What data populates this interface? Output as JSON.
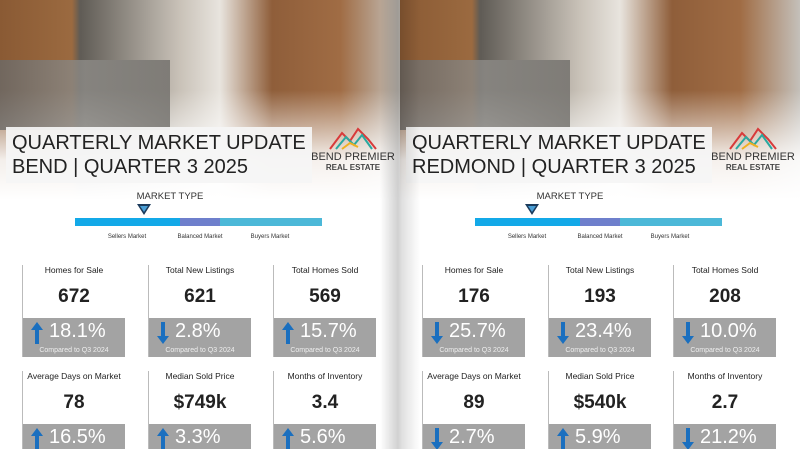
{
  "colors": {
    "sellers": "#13a9e8",
    "balanced": "#6e7fcc",
    "buyers": "#4cb8d8",
    "arrow": "#1a6fbf",
    "stat_box": "#a3a3a3"
  },
  "pages": [
    {
      "title_line1": "QUARTERLY MARKET UPDATE",
      "title_line2": "BEND | QUARTER 3 2025",
      "logo": {
        "name": "BEND PREMIER",
        "sub": "REAL ESTATE"
      },
      "market_type": {
        "label": "MARKET TYPE",
        "segments": [
          "Sellers Market",
          "Balanced Market",
          "Buyers Market"
        ],
        "indicator_position_percent": 28
      },
      "stats": [
        {
          "label": "Homes for Sale",
          "value": "672",
          "direction": "up",
          "change": "18.1%",
          "compare": "Compared to Q3 2024"
        },
        {
          "label": "Total New Listings",
          "value": "621",
          "direction": "down",
          "change": "2.8%",
          "compare": "Compared to Q3 2024"
        },
        {
          "label": "Total Homes Sold",
          "value": "569",
          "direction": "up",
          "change": "15.7%",
          "compare": "Compared to Q3 2024"
        },
        {
          "label": "Average Days on Market",
          "value": "78",
          "direction": "up",
          "change": "16.5%"
        },
        {
          "label": "Median Sold Price",
          "value": "$749k",
          "direction": "up",
          "change": "3.3%"
        },
        {
          "label": "Months of Inventory",
          "value": "3.4",
          "direction": "up",
          "change": "5.6%"
        }
      ]
    },
    {
      "title_line1": "QUARTERLY MARKET UPDATE",
      "title_line2": "REDMOND | QUARTER 3 2025",
      "logo": {
        "name": "BEND PREMIER",
        "sub": "REAL ESTATE"
      },
      "market_type": {
        "label": "MARKET TYPE",
        "segments": [
          "Sellers Market",
          "Balanced Market",
          "Buyers Market"
        ],
        "indicator_position_percent": 23
      },
      "stats": [
        {
          "label": "Homes for Sale",
          "value": "176",
          "direction": "down",
          "change": "25.7%",
          "compare": "Compared to Q3 2024"
        },
        {
          "label": "Total New Listings",
          "value": "193",
          "direction": "down",
          "change": "23.4%",
          "compare": "Compared to Q3 2024"
        },
        {
          "label": "Total Homes Sold",
          "value": "208",
          "direction": "down",
          "change": "10.0%",
          "compare": "Compared to Q3 2024"
        },
        {
          "label": "Average Days on Market",
          "value": "89",
          "direction": "down",
          "change": "2.7%"
        },
        {
          "label": "Median Sold Price",
          "value": "$540k",
          "direction": "up",
          "change": "5.9%"
        },
        {
          "label": "Months of Inventory",
          "value": "2.7",
          "direction": "down",
          "change": "21.2%"
        }
      ]
    }
  ]
}
